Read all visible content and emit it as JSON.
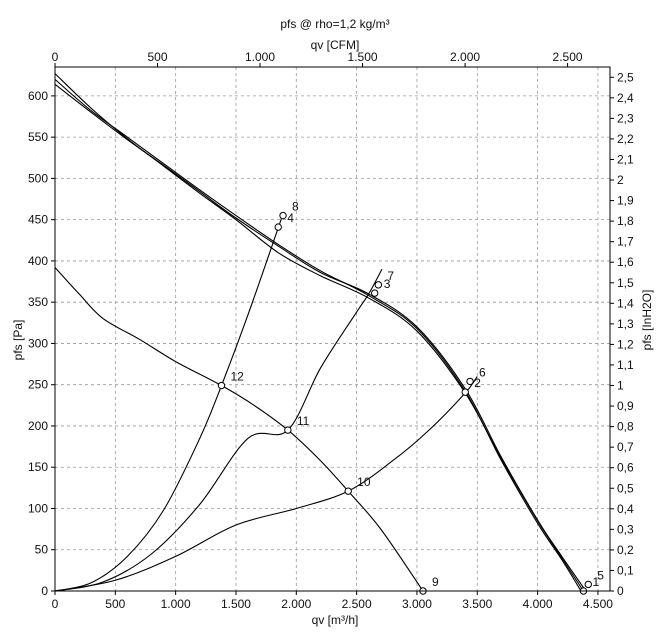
{
  "chart_data": {
    "type": "line",
    "title": "pfs @ rho=1,2 kg/m³",
    "xlabel": "qv [m³/h]",
    "ylabel": "pfs [Pa]",
    "x2label": "qv [CFM]",
    "y2label": "pfs [InH2O]",
    "xlim": [
      0,
      4600
    ],
    "ylim": [
      0,
      635
    ],
    "x2lim": [
      0,
      2707
    ],
    "y2lim": [
      0,
      2.55
    ],
    "grid": true,
    "x_ticks": [
      0,
      500,
      1000,
      1500,
      2000,
      2500,
      3000,
      3500,
      4000,
      4500
    ],
    "x_tick_labels": [
      "0",
      "500",
      "1.000",
      "1.500",
      "2.000",
      "2.500",
      "3.000",
      "3.500",
      "4.000",
      "4.500"
    ],
    "y_ticks": [
      0,
      50,
      100,
      150,
      200,
      250,
      300,
      350,
      400,
      450,
      500,
      550,
      600
    ],
    "y_tick_labels": [
      "0",
      "50",
      "100",
      "150",
      "200",
      "250",
      "300",
      "350",
      "400",
      "450",
      "500",
      "550",
      "600"
    ],
    "x2_ticks": [
      0,
      500,
      1000,
      1500,
      2000,
      2500
    ],
    "x2_tick_labels": [
      "0",
      "500",
      "1.000",
      "1.500",
      "2.000",
      "2.500"
    ],
    "y2_ticks": [
      0,
      0.1,
      0.2,
      0.3,
      0.4,
      0.5,
      0.6,
      0.7,
      0.8,
      0.9,
      1,
      1.1,
      1.2,
      1.3,
      1.4,
      1.5,
      1.6,
      1.7,
      1.8,
      1.9,
      2,
      2.1,
      2.2,
      2.3,
      2.4,
      2.5
    ],
    "y2_tick_labels": [
      "0",
      "0,1",
      "0,2",
      "0,3",
      "0,4",
      "0,5",
      "0,6",
      "0,7",
      "0,8",
      "0,9",
      "1",
      "1,1",
      "1,2",
      "1,3",
      "1,4",
      "1,5",
      "1,6",
      "1,7",
      "1,8",
      "1,9",
      "2",
      "2,1",
      "2,2",
      "2,3",
      "2,4",
      "2,5"
    ],
    "series": [
      {
        "points": [
          [
            0,
            627
          ],
          [
            300,
            585
          ],
          [
            600,
            548
          ],
          [
            900,
            515
          ],
          [
            1200,
            482
          ],
          [
            1500,
            450
          ],
          [
            1850,
            410
          ],
          [
            2200,
            382
          ],
          [
            2600,
            355
          ],
          [
            3000,
            315
          ],
          [
            3400,
            240
          ],
          [
            3700,
            160
          ],
          [
            4000,
            85
          ],
          [
            4200,
            40
          ],
          [
            4380,
            0
          ]
        ]
      },
      {
        "points": [
          [
            0,
            620
          ],
          [
            300,
            582
          ],
          [
            600,
            550
          ],
          [
            900,
            518
          ],
          [
            1200,
            486
          ],
          [
            1500,
            455
          ],
          [
            1850,
            420
          ],
          [
            2200,
            388
          ],
          [
            2600,
            358
          ],
          [
            3000,
            318
          ],
          [
            3400,
            242
          ],
          [
            3700,
            158
          ],
          [
            4000,
            82
          ],
          [
            4200,
            38
          ],
          [
            4360,
            0
          ]
        ]
      },
      {
        "points": [
          [
            0,
            614
          ],
          [
            300,
            580
          ],
          [
            600,
            547
          ],
          [
            900,
            516
          ],
          [
            1200,
            484
          ],
          [
            1500,
            452
          ],
          [
            1850,
            418
          ],
          [
            2200,
            386
          ],
          [
            2600,
            360
          ],
          [
            3000,
            320
          ],
          [
            3400,
            245
          ],
          [
            3700,
            162
          ],
          [
            4000,
            86
          ],
          [
            4200,
            42
          ],
          [
            4400,
            0
          ]
        ]
      },
      {
        "points": [
          [
            0,
            392
          ],
          [
            200,
            360
          ],
          [
            400,
            330
          ],
          [
            700,
            305
          ],
          [
            1000,
            278
          ],
          [
            1380,
            249
          ],
          [
            1650,
            225
          ],
          [
            1930,
            195
          ],
          [
            2200,
            158
          ],
          [
            2430,
            121
          ],
          [
            2700,
            75
          ],
          [
            3050,
            0
          ]
        ]
      },
      {
        "points": [
          [
            0,
            0
          ],
          [
            300,
            10
          ],
          [
            600,
            42
          ],
          [
            900,
            98
          ],
          [
            1200,
            185
          ],
          [
            1380,
            249
          ],
          [
            1600,
            335
          ],
          [
            1850,
            440
          ],
          [
            1890,
            458
          ]
        ]
      },
      {
        "points": [
          [
            0,
            0
          ],
          [
            400,
            11
          ],
          [
            800,
            45
          ],
          [
            1200,
            105
          ],
          [
            1600,
            185
          ],
          [
            1930,
            195
          ],
          [
            2200,
            270
          ],
          [
            2500,
            338
          ],
          [
            2600,
            360
          ],
          [
            2710,
            390
          ]
        ]
      },
      {
        "points": [
          [
            0,
            0
          ],
          [
            500,
            13
          ],
          [
            1000,
            42
          ],
          [
            1500,
            80
          ],
          [
            2000,
            100
          ],
          [
            2430,
            121
          ],
          [
            2800,
            158
          ],
          [
            3100,
            195
          ],
          [
            3400,
            240
          ],
          [
            3500,
            260
          ]
        ]
      }
    ],
    "markers": [
      {
        "x": 1850,
        "y": 441,
        "label": "4"
      },
      {
        "x": 1890,
        "y": 455,
        "label": "8"
      },
      {
        "x": 2650,
        "y": 361,
        "label": "3"
      },
      {
        "x": 2680,
        "y": 371,
        "label": "7"
      },
      {
        "x": 3400,
        "y": 241,
        "label": "2"
      },
      {
        "x": 3440,
        "y": 254,
        "label": "6"
      },
      {
        "x": 4380,
        "y": 0,
        "label": "1"
      },
      {
        "x": 4420,
        "y": 8,
        "label": "5"
      },
      {
        "x": 1380,
        "y": 249,
        "label": "12"
      },
      {
        "x": 1930,
        "y": 195,
        "label": "11"
      },
      {
        "x": 2430,
        "y": 121,
        "label": "10"
      },
      {
        "x": 3050,
        "y": 0,
        "label": "9"
      }
    ]
  }
}
